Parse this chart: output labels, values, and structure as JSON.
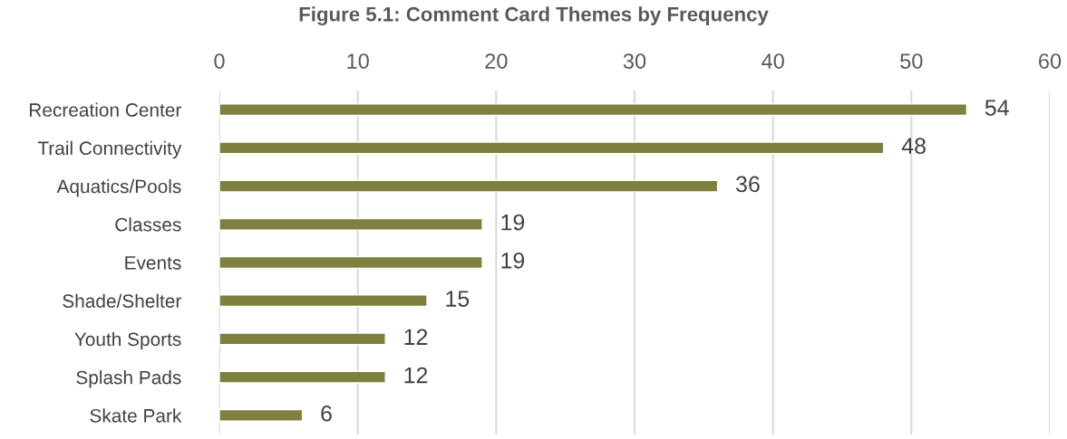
{
  "chart_data": {
    "type": "bar",
    "orientation": "horizontal",
    "title": "Figure 5.1: Comment Card Themes by Frequency",
    "categories": [
      "Recreation Center",
      "Trail Connectivity",
      "Aquatics/Pools",
      "Classes",
      "Events",
      "Shade/Shelter",
      "Youth Sports",
      "Splash Pads",
      "Skate Park"
    ],
    "values": [
      54,
      48,
      36,
      19,
      19,
      15,
      12,
      12,
      6
    ],
    "color": "#7f7f3f",
    "xlim": [
      0,
      60
    ],
    "xticks": [
      0,
      10,
      20,
      30,
      40,
      50,
      60
    ],
    "grid": "x",
    "data_labels": true
  }
}
